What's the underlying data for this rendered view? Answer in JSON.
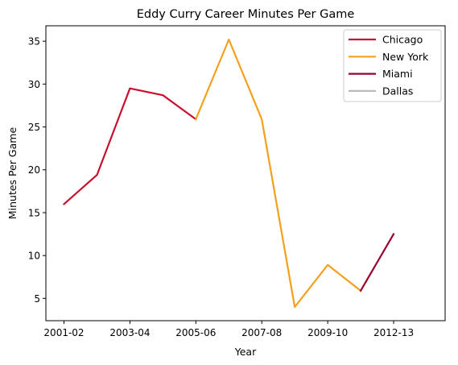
{
  "chart_data": {
    "type": "line",
    "title": "Eddy Curry Career Minutes Per Game",
    "xlabel": "Year",
    "ylabel": "Minutes Per Game",
    "x_index_range": [
      0,
      11
    ],
    "ylim": [
      2.4,
      36.8
    ],
    "x_ticks": [
      {
        "index": 0,
        "label": "2001-02"
      },
      {
        "index": 2,
        "label": "2003-04"
      },
      {
        "index": 4,
        "label": "2005-06"
      },
      {
        "index": 6,
        "label": "2007-08"
      },
      {
        "index": 8,
        "label": "2009-10"
      },
      {
        "index": 10,
        "label": "2012-13"
      }
    ],
    "y_ticks": [
      5,
      10,
      15,
      20,
      25,
      30,
      35
    ],
    "grid": false,
    "legend_position": "top-right",
    "series": [
      {
        "name": "Chicago",
        "color": "#c8102e",
        "x": [
          0,
          1,
          2,
          3,
          4
        ],
        "y": [
          16.0,
          19.4,
          29.5,
          28.7,
          25.9
        ]
      },
      {
        "name": "New York",
        "color": "#f5a01a",
        "x": [
          4,
          5,
          6,
          7,
          8,
          9
        ],
        "y": [
          25.9,
          35.2,
          25.9,
          4.0,
          8.9,
          5.9
        ]
      },
      {
        "name": "Miami",
        "color": "#98002e",
        "x": [
          9,
          10
        ],
        "y": [
          5.9,
          12.5
        ]
      },
      {
        "name": "Dallas",
        "color": "#bbbbbb",
        "x": [],
        "y": []
      }
    ]
  }
}
